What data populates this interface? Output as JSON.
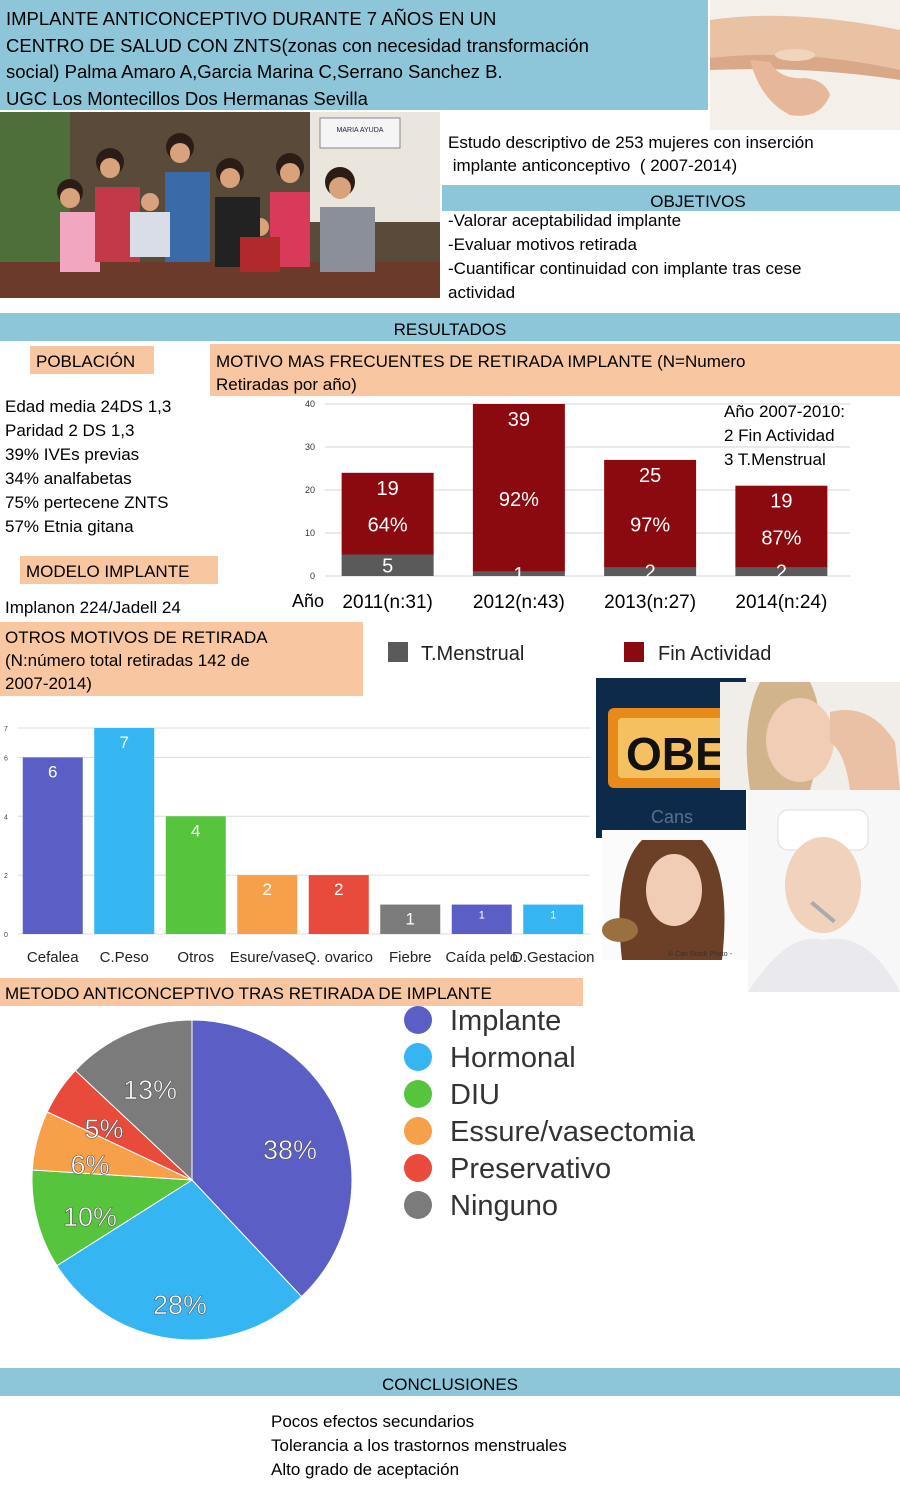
{
  "header": {
    "title_lines": [
      "IMPLANTE ANTICONCEPTIVO DURANTE    7 AÑOS EN UN",
      "CENTRO DE SALUD CON ZNTS(zonas con necesidad transformación",
      "social) Palma Amaro A,Garcia Marina C,Serrano Sanchez B.",
      "UGC Los Montecillos Dos Hermanas Sevilla"
    ]
  },
  "study": {
    "lines": [
      "Estudo descriptivo de 253 mujeres con inserción",
      " implante anticonceptivo  ( 2007-2014)"
    ],
    "photo_sign": "MARIA AYUDA"
  },
  "objetivos": {
    "title": "OBJETIVOS",
    "lines": [
      "-Valorar aceptabilidad implante",
      "-Evaluar motivos retirada",
      "-Cuantificar continuidad con implante tras cese",
      "actividad"
    ]
  },
  "resultados": {
    "title": "RESULTADOS"
  },
  "poblacion": {
    "title": "POBLACIÓN",
    "lines": [
      "Edad media 24DS 1,3",
      "Paridad 2 DS 1,3",
      "39% IVEs previas",
      "34% analfabetas",
      "75% pertecene ZNTS",
      "57% Etnia gitana"
    ]
  },
  "modelo": {
    "title": "MODELO IMPLANTE",
    "text": "Implanon 224/Jadell 24"
  },
  "otros_header": {
    "lines": [
      "OTROS MOTIVOS DE RETIRADA",
      "(N:número total retiradas 142 de",
      "2007-2014)"
    ]
  },
  "motivo_header": {
    "lines": [
      "MOTIVO MAS FRECUENTES  DE RETIRADA IMPLANTE (N=Numero",
      "Retiradas por año)"
    ]
  },
  "metodo_header": {
    "title": "METODO ANTICONCEPTIVO TRAS RETIRADA DE IMPLANTE"
  },
  "conclusiones": {
    "title": "CONCLUSIONES",
    "lines": [
      "Pocos efectos secundarios",
      "Tolerancia a los trastornos menstruales",
      "Alto grado de aceptación"
    ]
  },
  "images": {
    "sign_text": "OBE",
    "watermark": "Cans",
    "watermark2": "© Can Stock Photo -"
  },
  "colors": {
    "dark_red": "#8b0a10",
    "grey": "#5a5a5a",
    "band": "#8cc6d8",
    "peach": "#f8c6a0"
  },
  "chart_data": [
    {
      "type": "bar",
      "stacked": true,
      "x_prefix": "Año",
      "categories": [
        "2011(n:31)",
        "2012(n:43)",
        "2013(n:27)",
        "2014(n:24)"
      ],
      "series": [
        {
          "name": "T.Menstrual",
          "color": "#5a5a5a",
          "values": [
            5,
            1,
            2,
            2
          ]
        },
        {
          "name": "Fin Actividad",
          "color": "#8b0a10",
          "values": [
            19,
            39,
            25,
            19
          ]
        }
      ],
      "percent_labels": [
        "64%",
        "92%",
        "97%",
        "87%"
      ],
      "ylim": [
        0,
        40
      ],
      "yticks": [
        0,
        10,
        20,
        30,
        40
      ],
      "grid": true,
      "legend": "bottom",
      "annotation": [
        "Año 2007-2010:",
        "2  Fin Actividad",
        "3  T.Menstrual"
      ]
    },
    {
      "type": "bar",
      "categories": [
        "Cefalea",
        "C.Peso",
        "Otros",
        "Esure/vase",
        "Q. ovarico",
        "Fiebre",
        "Caída pelo",
        "D.Gestacion"
      ],
      "values": [
        6,
        7,
        4,
        2,
        2,
        1,
        1,
        1
      ],
      "colors": [
        "#5b5ec4",
        "#35b5f2",
        "#56c43d",
        "#f7a04a",
        "#e84a3c",
        "#7b7b7b",
        "#5b5ec4",
        "#35b5f2"
      ],
      "ylim": [
        0,
        7
      ],
      "yticks": [
        0,
        2,
        4,
        6,
        7
      ],
      "grid": true
    },
    {
      "type": "pie",
      "labels": [
        "Implante",
        "Hormonal",
        "DIU",
        "Essure/vasectomia",
        "Preservativo",
        "Ninguno"
      ],
      "values": [
        38,
        28,
        10,
        6,
        5,
        13
      ],
      "value_labels": [
        "38%",
        "28%",
        "10%",
        "6%",
        "5%",
        "13%"
      ],
      "colors": [
        "#5b5ec4",
        "#35b5f2",
        "#56c43d",
        "#f7a04a",
        "#e84a3c",
        "#7b7b7b"
      ],
      "legend": "right"
    }
  ]
}
